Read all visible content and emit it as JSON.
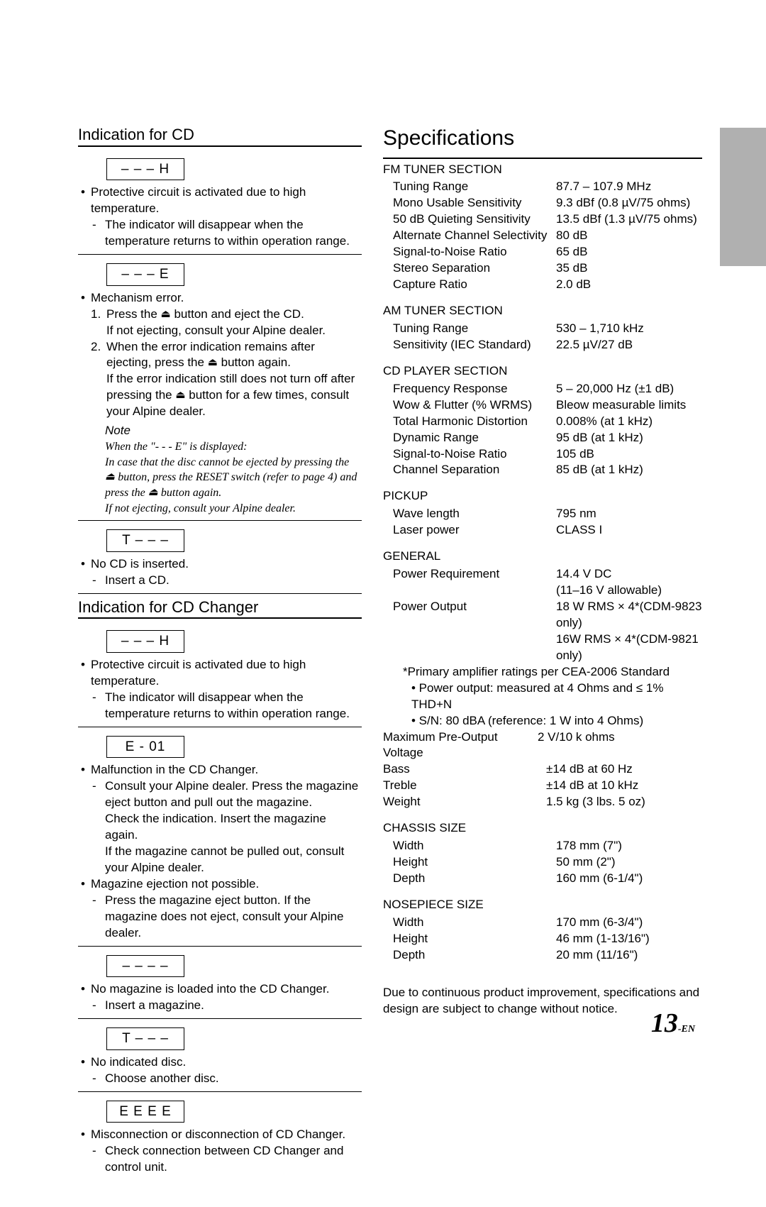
{
  "left": {
    "section_cd_title": "Indication for CD",
    "h_code": "– – – H",
    "h_bullet": "Protective circuit is activated due to high temperature.",
    "h_sub": "The indicator will disappear when the temperature returns to within operation range.",
    "e_code": "– – – E",
    "e_bullet": "Mechanism error.",
    "e_num1_a": "Press the ",
    "e_num1_b": " button and eject the CD.",
    "e_num1_c": "If not ejecting, consult your Alpine dealer.",
    "e_num2_a": "When the error indication remains after ejecting, press the ",
    "e_num2_b": " button again.",
    "e_num2_c": "If the error indication still does not turn off after pressing the ",
    "e_num2_d": " button for a few times, consult your Alpine dealer.",
    "note_title": "Note",
    "note_l1": "When the \"- - - E\" is displayed:",
    "note_l2a": "In case that the disc cannot be ejected by pressing the ",
    "note_l2b": " button, press the RESET switch (refer to page 4) and press the ",
    "note_l2c": " button again.",
    "note_l3": "If not ejecting, consult your Alpine dealer.",
    "t_code": "T – – –",
    "t_bullet": "No CD is inserted.",
    "t_sub": "Insert a CD.",
    "section_changer_title": "Indication for CD Changer",
    "ch_h_code": "– – – H",
    "ch_h_bullet": "Protective circuit is activated due to high temperature.",
    "ch_h_sub": "The indicator will disappear when the temperature returns to within operation range.",
    "e01_code": "E - 01",
    "e01_bullet": "Malfunction in the CD Changer.",
    "e01_sub": "Consult your Alpine dealer. Press the magazine eject button and pull out the magazine.",
    "e01_p1": "Check the indication. Insert the magazine again.",
    "e01_p2": "If the magazine cannot be pulled out, consult your Alpine dealer.",
    "e01_b2": "Magazine ejection not possible.",
    "e01_s2": "Press the magazine eject button. If the magazine does not eject, consult your Alpine dealer.",
    "dash_code": "– – – –",
    "dash_bullet": "No magazine is loaded into the CD Changer.",
    "dash_sub": "Insert a magazine.",
    "t2_code": "T – – –",
    "t2_bullet": "No indicated disc.",
    "t2_sub": "Choose another disc.",
    "eeee_code": "E E E E",
    "eeee_bullet": "Misconnection or disconnection of CD Changer.",
    "eeee_sub": "Check connection between CD Changer and control unit."
  },
  "right": {
    "title": "Specifications",
    "fm": {
      "title": "FM TUNER SECTION",
      "rows": [
        {
          "label": "Tuning Range",
          "value": "87.7 – 107.9 MHz"
        },
        {
          "label": "Mono Usable Sensitivity",
          "value": "9.3 dBf (0.8 µV/75 ohms)"
        },
        {
          "label": "50 dB Quieting Sensitivity",
          "value": "13.5 dBf (1.3 µV/75 ohms)"
        },
        {
          "label": "Alternate Channel Selectivity",
          "value": "80 dB"
        },
        {
          "label": "Signal-to-Noise Ratio",
          "value": "65 dB"
        },
        {
          "label": "Stereo Separation",
          "value": "35 dB"
        },
        {
          "label": "Capture Ratio",
          "value": "2.0 dB"
        }
      ]
    },
    "am": {
      "title": "AM TUNER SECTION",
      "rows": [
        {
          "label": "Tuning Range",
          "value": "530 – 1,710 kHz"
        },
        {
          "label": "Sensitivity (IEC Standard)",
          "value": "22.5 µV/27 dB"
        }
      ]
    },
    "cd": {
      "title": "CD PLAYER SECTION",
      "rows": [
        {
          "label": "Frequency Response",
          "value": "5 – 20,000 Hz (±1 dB)"
        },
        {
          "label": "Wow & Flutter (% WRMS)",
          "value": "Bleow measurable limits"
        },
        {
          "label": "Total Harmonic Distortion",
          "value": "0.008% (at 1 kHz)"
        },
        {
          "label": "Dynamic Range",
          "value": "95 dB (at 1 kHz)"
        },
        {
          "label": "Signal-to-Noise Ratio",
          "value": "105 dB"
        },
        {
          "label": "Channel Separation",
          "value": "85 dB (at 1 kHz)"
        }
      ]
    },
    "pickup": {
      "title": "PICKUP",
      "rows": [
        {
          "label": "Wave length",
          "value": "795 nm"
        },
        {
          "label": "Laser power",
          "value": "CLASS I"
        }
      ]
    },
    "general": {
      "title": "GENERAL",
      "power_req_label": "Power Requirement",
      "power_req_val1": "14.4 V DC",
      "power_req_val2": "(11–16 V allowable)",
      "power_out_label": "Power Output",
      "power_out_val1": "18 W RMS × 4*(CDM-9823 only)",
      "power_out_val2": "16W RMS × 4*(CDM-9821 only)",
      "star1": "*Primary amplifier ratings per CEA-2006 Standard",
      "star2": "• Power output: measured at 4 Ohms and ≤ 1% THD+N",
      "star3": "• S/N: 80 dBA (reference: 1 W into 4 Ohms)",
      "preout_label": "Maximum Pre-Output Voltage",
      "preout_value": "2 V/10 k ohms",
      "rows2": [
        {
          "label": "Bass",
          "value": "±14 dB at 60 Hz"
        },
        {
          "label": "Treble",
          "value": "±14 dB at 10 kHz"
        },
        {
          "label": "Weight",
          "value": "1.5 kg (3 lbs. 5 oz)"
        }
      ]
    },
    "chassis": {
      "title": "CHASSIS SIZE",
      "rows": [
        {
          "label": "Width",
          "value": "178 mm (7\")"
        },
        {
          "label": "Height",
          "value": "50 mm (2\")"
        },
        {
          "label": "Depth",
          "value": "160 mm (6-1/4\")"
        }
      ]
    },
    "nose": {
      "title": "NOSEPIECE SIZE",
      "rows": [
        {
          "label": "Width",
          "value": "170 mm (6-3/4\")"
        },
        {
          "label": "Height",
          "value": "46 mm (1-13/16\")"
        },
        {
          "label": "Depth",
          "value": "20 mm (11/16\")"
        }
      ]
    },
    "disclaimer": "Due to continuous product improvement, specifications and design are subject to change without notice."
  },
  "page_number_big": "13",
  "page_number_small": "-EN"
}
